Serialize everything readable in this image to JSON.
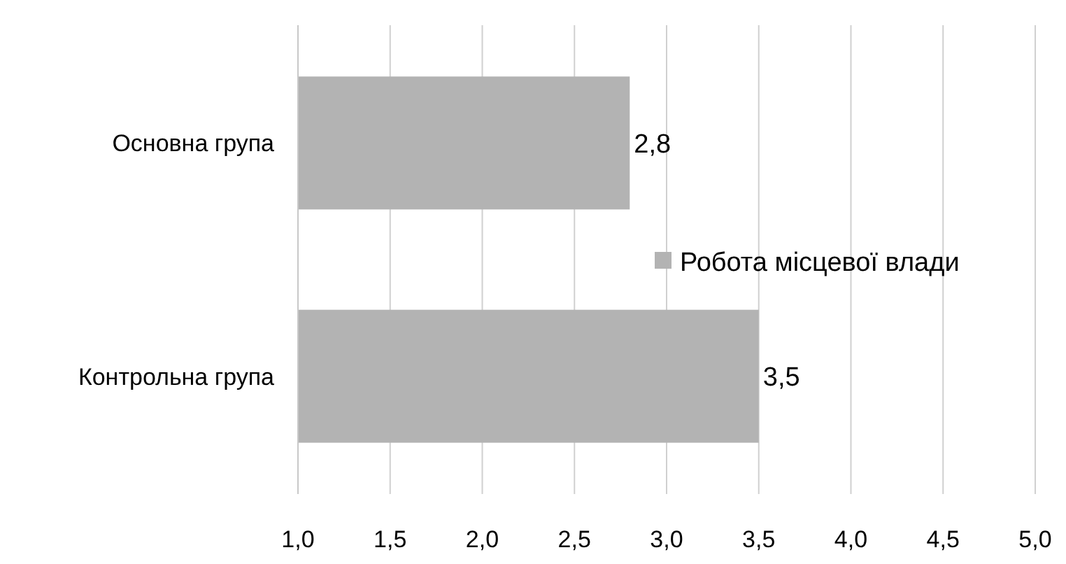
{
  "chart_data": {
    "type": "bar",
    "orientation": "horizontal",
    "categories": [
      "Основна група",
      "Контрольна група"
    ],
    "series": [
      {
        "name": "Робота місцевої влади",
        "color": "#b3b3b3",
        "values": [
          2.8,
          3.5
        ]
      }
    ],
    "value_labels": [
      "2,8",
      "3,5"
    ],
    "xlim": [
      1,
      5
    ],
    "xticks": [
      {
        "value": 1,
        "label": "1,0"
      },
      {
        "value": 1.5,
        "label": "1,5"
      },
      {
        "value": 2,
        "label": "2,0"
      },
      {
        "value": 2.5,
        "label": "2,5"
      },
      {
        "value": 3,
        "label": "3,0"
      },
      {
        "value": 3.5,
        "label": "3,5"
      },
      {
        "value": 4,
        "label": "4,0"
      },
      {
        "value": 4.5,
        "label": "4,5"
      },
      {
        "value": 5,
        "label": "5,0"
      }
    ],
    "grid": "x",
    "legend": "right"
  }
}
